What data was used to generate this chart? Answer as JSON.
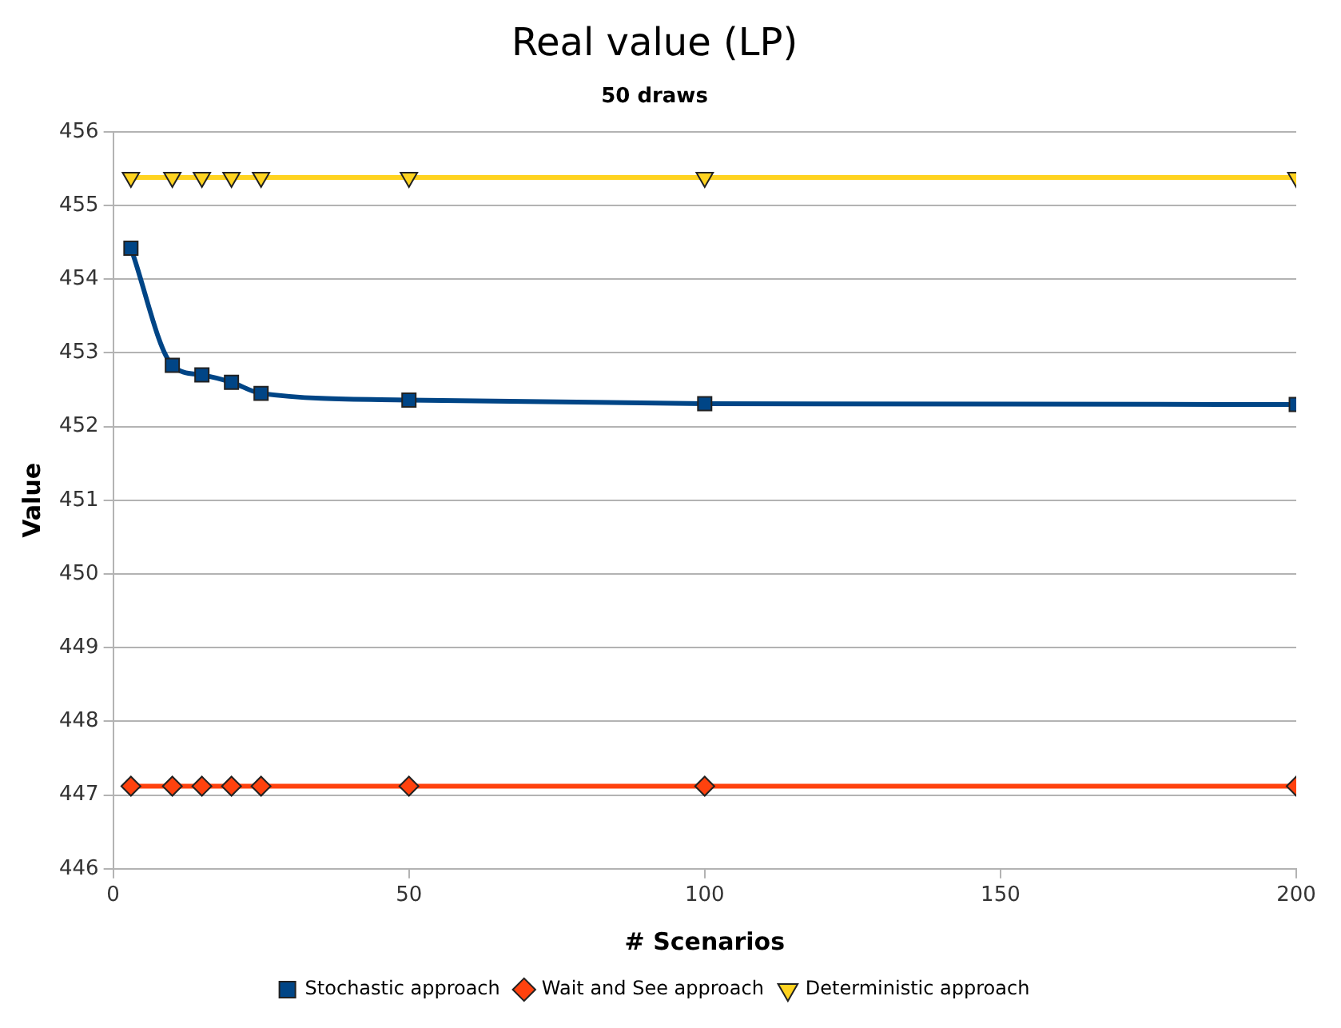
{
  "chart_data": {
    "type": "line",
    "title": "Real value (LP)",
    "subtitle": "50 draws",
    "xlabel": "# Scenarios",
    "ylabel": "Value",
    "x": [
      3,
      10,
      15,
      20,
      25,
      50,
      100,
      200
    ],
    "series": [
      {
        "name": "Stochastic approach",
        "color": "#004586",
        "marker": "square",
        "values": [
          454.42,
          452.83,
          452.7,
          452.6,
          452.45,
          452.36,
          452.31,
          452.3
        ]
      },
      {
        "name": "Wait and See approach",
        "color": "#ff420e",
        "marker": "diamond",
        "values": [
          447.12,
          447.12,
          447.12,
          447.12,
          447.12,
          447.12,
          447.12,
          447.12
        ]
      },
      {
        "name": "Deterministic approach",
        "color": "#ffd320",
        "marker": "triangle",
        "values": [
          455.38,
          455.38,
          455.38,
          455.38,
          455.38,
          455.38,
          455.38,
          455.38
        ]
      }
    ],
    "xlim": [
      0,
      200
    ],
    "xticks": [
      0,
      50,
      100,
      150,
      200
    ],
    "ylim": [
      446,
      456
    ],
    "yticks": [
      446,
      447,
      448,
      449,
      450,
      451,
      452,
      453,
      454,
      455,
      456
    ],
    "grid": "y",
    "legend": "bottom",
    "line_style": "solid"
  }
}
